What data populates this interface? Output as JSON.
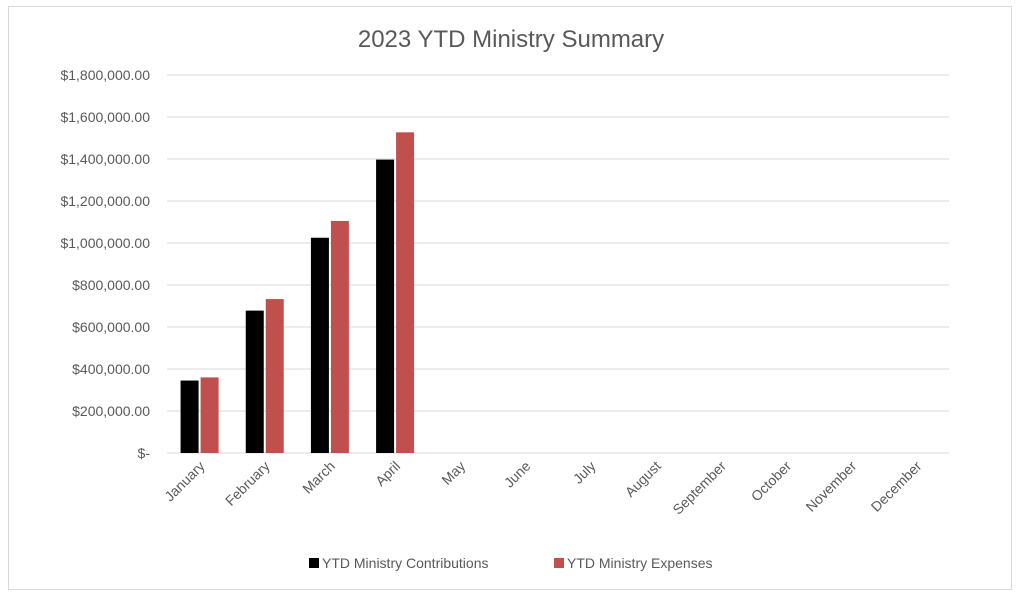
{
  "chart_data": {
    "type": "bar",
    "title": "2023 YTD Ministry Summary",
    "categories": [
      "January",
      "February",
      "March",
      "April",
      "May",
      "June",
      "July",
      "August",
      "September",
      "October",
      "November",
      "December"
    ],
    "series": [
      {
        "name": "YTD Ministry Contributions",
        "color": "#000000",
        "values": [
          345000,
          678000,
          1025000,
          1397000,
          null,
          null,
          null,
          null,
          null,
          null,
          null,
          null
        ]
      },
      {
        "name": "YTD Ministry Expenses",
        "color": "#c0504d",
        "values": [
          360000,
          733000,
          1105000,
          1527000,
          null,
          null,
          null,
          null,
          null,
          null,
          null,
          null
        ]
      }
    ],
    "ylim": [
      0,
      1800000
    ],
    "yticks": [
      0,
      200000,
      400000,
      600000,
      800000,
      1000000,
      1200000,
      1400000,
      1600000,
      1800000
    ],
    "ytick_labels": [
      "$-",
      "$200,000.00",
      "$400,000.00",
      "$600,000.00",
      "$800,000.00",
      "$1,000,000.00",
      "$1,200,000.00",
      "$1,400,000.00",
      "$1,600,000.00",
      "$1,800,000.00"
    ],
    "xlabel": "",
    "ylabel": "",
    "grid": true,
    "legend_position": "bottom"
  }
}
